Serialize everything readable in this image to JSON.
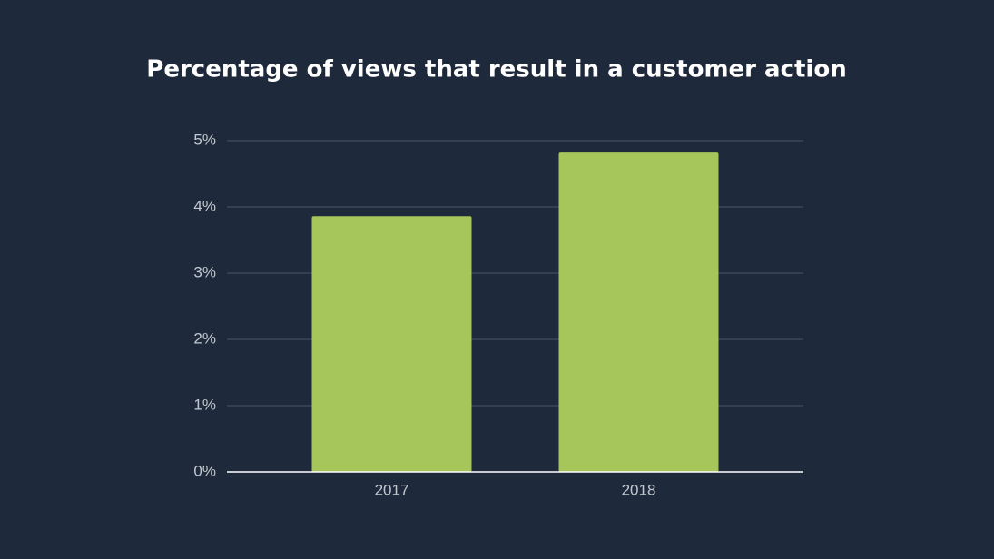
{
  "chart_data": {
    "type": "bar",
    "title": "Percentage of views that result in a customer action",
    "categories": [
      "2017",
      "2018"
    ],
    "values": [
      3.86,
      4.82
    ],
    "color": "#a6c65b",
    "ylim": [
      0,
      5
    ],
    "yticks": [
      {
        "value": 0,
        "label": "0%"
      },
      {
        "value": 1,
        "label": "1%"
      },
      {
        "value": 2,
        "label": "2%"
      },
      {
        "value": 3,
        "label": "3%"
      },
      {
        "value": 4,
        "label": "4%"
      },
      {
        "value": 5,
        "label": "5%"
      }
    ],
    "grid": true
  }
}
